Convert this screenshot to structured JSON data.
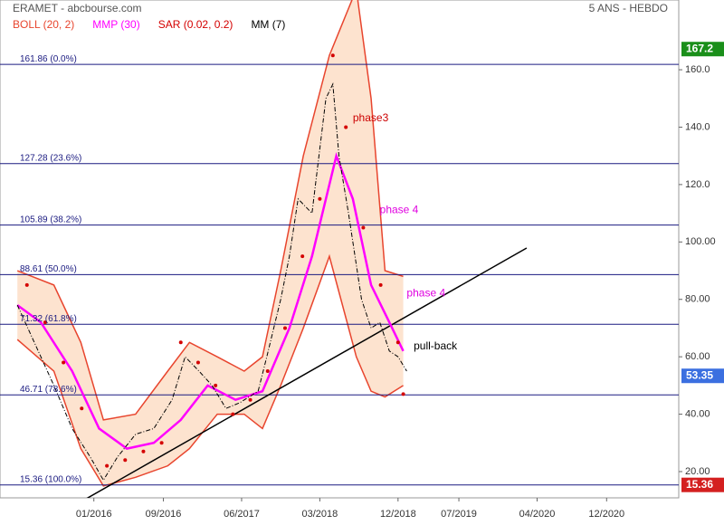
{
  "chart_data": {
    "type": "line",
    "title": "ERAMET - abcbourse.com",
    "subtitle": "5 ANS - HEBDO",
    "xlim": [
      -10.8,
      67.3
    ],
    "ylim": [
      10.85,
      184.3
    ],
    "xticks": [
      {
        "value": 0,
        "label": "01/2016"
      },
      {
        "value": 8,
        "label": "09/2016"
      },
      {
        "value": 17,
        "label": "06/2017"
      },
      {
        "value": 26,
        "label": "03/2018"
      },
      {
        "value": 35,
        "label": "12/2018"
      },
      {
        "value": 42,
        "label": "07/2019"
      },
      {
        "value": 51,
        "label": "04/2020"
      },
      {
        "value": 59,
        "label": "12/2020"
      }
    ],
    "yticks": [
      {
        "value": 20,
        "label": "20.00"
      },
      {
        "value": 40,
        "label": "40.00"
      },
      {
        "value": 60,
        "label": "60.00"
      },
      {
        "value": 80,
        "label": "80.00"
      },
      {
        "value": 100,
        "label": "100.00"
      },
      {
        "value": 120,
        "label": "120.0"
      },
      {
        "value": 140,
        "label": "140.0"
      },
      {
        "value": 160,
        "label": "160.0"
      }
    ],
    "bands": {
      "name": "BOLL (20, 2)",
      "color": "#e8452e",
      "fill": "#fde3cf",
      "x": [
        -8.8,
        -4.6,
        -1.5,
        1.1,
        4.8,
        8.5,
        11.0,
        14.2,
        17.3,
        19.4,
        21.5,
        24.1,
        27.1,
        30.2,
        31.9,
        33.5,
        35.6
      ],
      "upper": [
        90,
        85,
        65,
        38,
        40,
        55,
        65,
        60,
        55,
        60,
        90,
        130,
        165,
        188,
        150,
        90,
        88
      ],
      "lower": [
        66,
        55,
        28,
        15,
        18,
        22,
        28,
        40,
        40,
        35,
        50,
        70,
        95,
        60,
        48,
        46,
        50
      ]
    },
    "series": [
      {
        "name": "MMP (30)",
        "color": "#ff00ff",
        "style": "line",
        "x": [
          -8.8,
          -6.1,
          -2.5,
          0.6,
          3.8,
          6.9,
          10.0,
          13.1,
          16.3,
          19.4,
          22.5,
          25.1,
          27.9,
          29.8,
          31.9,
          34.0,
          35.6
        ],
        "values": [
          78,
          72,
          55,
          35,
          28,
          30,
          38,
          50,
          45,
          48,
          70,
          95,
          130,
          115,
          85,
          72,
          62
        ]
      },
      {
        "name": "SAR (0.02, 0.2)",
        "color": "#d40000",
        "style": "dots",
        "x": [
          -7.7,
          -5.6,
          -3.5,
          -1.4,
          1.5,
          3.6,
          5.7,
          7.8,
          10.0,
          12.0,
          14.0,
          16,
          18,
          20,
          22,
          24,
          26,
          27.5,
          29,
          31,
          33,
          35,
          35.6
        ],
        "values": [
          85,
          72,
          58,
          42,
          22,
          24,
          27,
          30,
          65,
          58,
          50,
          40,
          45,
          55,
          70,
          95,
          115,
          165,
          140,
          105,
          85,
          65,
          47
        ]
      },
      {
        "name": "MM (7)",
        "color": "#000000",
        "style": "line",
        "x": [
          -8.8,
          -4.6,
          -2.5,
          -0.4,
          1.1,
          2.7,
          4.8,
          6.9,
          9.0,
          10.5,
          12.1,
          13.6,
          15.2,
          16.8,
          18.9,
          19.9,
          21.5,
          22.5,
          23.5,
          25.1,
          26.7,
          27.5,
          28.2,
          29.3,
          30.8,
          31.9,
          32.9,
          34.0,
          35.0,
          36.0
        ],
        "values": [
          78,
          50,
          35,
          25,
          17,
          25,
          33,
          35,
          45,
          60,
          55,
          50,
          42,
          44,
          48,
          60,
          80,
          95,
          115,
          110,
          150,
          155,
          130,
          110,
          80,
          70,
          72,
          62,
          60,
          55
        ]
      }
    ],
    "fib_levels": [
      {
        "value": 161.86,
        "label": "161.86  (0.0%)"
      },
      {
        "value": 127.28,
        "label": "127.28  (23.6%)"
      },
      {
        "value": 105.89,
        "label": "105.89  (38.2%)"
      },
      {
        "value": 88.61,
        "label": "88.61  (50.0%)"
      },
      {
        "value": 71.32,
        "label": "71.32  (61.8%)"
      },
      {
        "value": 46.71,
        "label": "46.71  (78.6%)"
      },
      {
        "value": 15.36,
        "label": "15.36  (100.0%)"
      }
    ],
    "trendline": {
      "x": [
        -0.9,
        49.8
      ],
      "values": [
        10.5,
        97.9
      ]
    },
    "price_markers": [
      {
        "value": 167.2,
        "color": "#1a8f1a"
      },
      {
        "value": 53.35,
        "color": "#3b6fe0"
      },
      {
        "value": 15.36,
        "color": "#d42020"
      }
    ],
    "annotations": [
      {
        "text": "phase3",
        "x": 29.8,
        "value": 143,
        "color": "#cc0000"
      },
      {
        "text": "phase 4",
        "x": 32.9,
        "value": 111,
        "color": "#e000e0"
      },
      {
        "text": "phase 4",
        "x": 36.0,
        "value": 82,
        "color": "#e000e0"
      },
      {
        "text": "pull-back",
        "x": 36.8,
        "value": 63.5,
        "color": "#000000"
      }
    ]
  }
}
